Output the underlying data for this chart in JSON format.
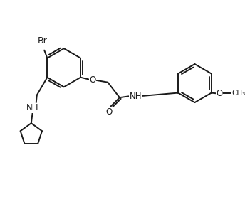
{
  "bg": "#ffffff",
  "lc": "#1a1a1a",
  "lw": 1.4,
  "fs": 8.5,
  "fig_w": 3.51,
  "fig_h": 2.84,
  "dpi": 100,
  "xlim": [
    0,
    10
  ],
  "ylim": [
    0,
    8
  ],
  "ring_r": 0.78
}
